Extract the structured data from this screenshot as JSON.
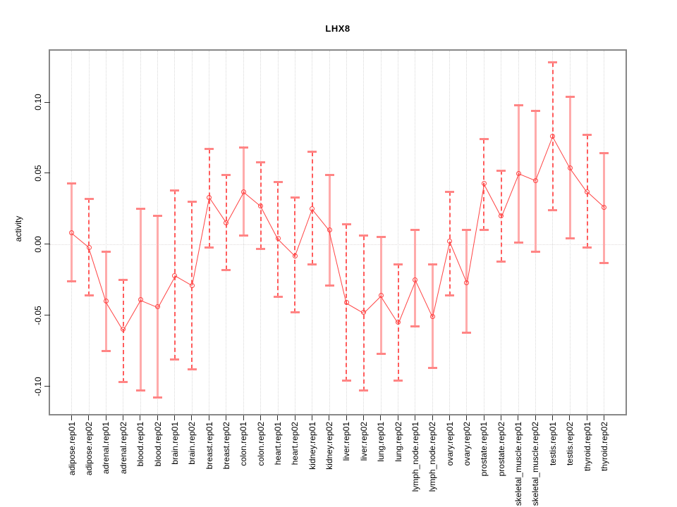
{
  "chart_data": {
    "type": "line",
    "title": "LHX8",
    "xlabel": "",
    "ylabel": "activity",
    "error_bars": true,
    "legend": "none",
    "grid": {
      "vertical_dotted": true,
      "zero_line_dotted": true
    },
    "ylim": [
      -0.119,
      0.135
    ],
    "ytick_values": [
      0.1,
      0.05,
      0.0,
      -0.05,
      -0.1
    ],
    "ytick_labels": [
      "0.10",
      "0.05",
      "0.00",
      "-0.05",
      "-0.10"
    ],
    "categories": [
      "adipose.rep01",
      "adipose.rep02",
      "adrenal.rep01",
      "adrenal.rep02",
      "blood.rep01",
      "blood.rep02",
      "brain.rep01",
      "brain.rep02",
      "breast.rep01",
      "breast.rep02",
      "colon.rep01",
      "colon.rep02",
      "heart.rep01",
      "heart.rep02",
      "kidney.rep01",
      "kidney.rep02",
      "liver.rep01",
      "liver.rep02",
      "lung.rep01",
      "lung.rep02",
      "lymph_node.rep01",
      "lymph_node.rep02",
      "ovary.rep01",
      "ovary.rep02",
      "prostate.rep01",
      "prostate.rep02",
      "skeletal_muscle.rep01",
      "skeletal_muscle.rep02",
      "testis.rep01",
      "testis.rep02",
      "thyroid.rep01",
      "thyroid.rep02"
    ],
    "series": [
      {
        "name": "activity",
        "values": [
          0.008,
          -0.002,
          -0.04,
          -0.06,
          -0.039,
          -0.044,
          -0.022,
          -0.029,
          0.033,
          0.015,
          0.037,
          0.027,
          0.004,
          -0.008,
          0.025,
          0.01,
          -0.041,
          -0.048,
          -0.036,
          -0.055,
          -0.025,
          -0.051,
          0.002,
          -0.027,
          0.043,
          0.02,
          0.05,
          0.045,
          0.076,
          0.054,
          0.037,
          0.026
        ],
        "ci_low": [
          -0.026,
          -0.036,
          -0.075,
          -0.097,
          -0.103,
          -0.108,
          -0.081,
          -0.088,
          -0.002,
          -0.018,
          0.006,
          -0.003,
          -0.037,
          -0.048,
          -0.014,
          -0.029,
          -0.096,
          -0.103,
          -0.077,
          -0.096,
          -0.058,
          -0.087,
          -0.036,
          -0.062,
          0.01,
          -0.012,
          0.001,
          -0.005,
          0.024,
          0.004,
          -0.002,
          -0.013
        ],
        "ci_high": [
          0.043,
          0.032,
          -0.005,
          -0.025,
          0.025,
          0.02,
          0.038,
          0.03,
          0.067,
          0.049,
          0.068,
          0.058,
          0.044,
          0.033,
          0.065,
          0.049,
          0.014,
          0.006,
          0.005,
          -0.014,
          0.01,
          -0.014,
          0.037,
          0.01,
          0.074,
          0.052,
          0.098,
          0.094,
          0.128,
          0.104,
          0.077,
          0.064
        ],
        "bar_styles": [
          "solid",
          "dashed",
          "solid",
          "dashed",
          "solid",
          "solid",
          "dashed",
          "dashed",
          "dashed",
          "dashed",
          "solid",
          "dashed",
          "dashed",
          "dashed",
          "dashed",
          "solid",
          "dashed",
          "dashed",
          "solid",
          "dashed",
          "solid",
          "solid",
          "dashed",
          "solid",
          "dashed",
          "dashed",
          "solid",
          "solid",
          "dashed",
          "solid",
          "dashed",
          "solid"
        ]
      }
    ],
    "colors": {
      "point_line": "#ff4343",
      "error_bar_solid": "#ffabab",
      "error_bar_dashed": "#ff5c5c",
      "error_cap": "#ff8585",
      "plot_border": "#878787",
      "gridline": "#d8d8d8",
      "tick": "#2e2e2e"
    }
  }
}
